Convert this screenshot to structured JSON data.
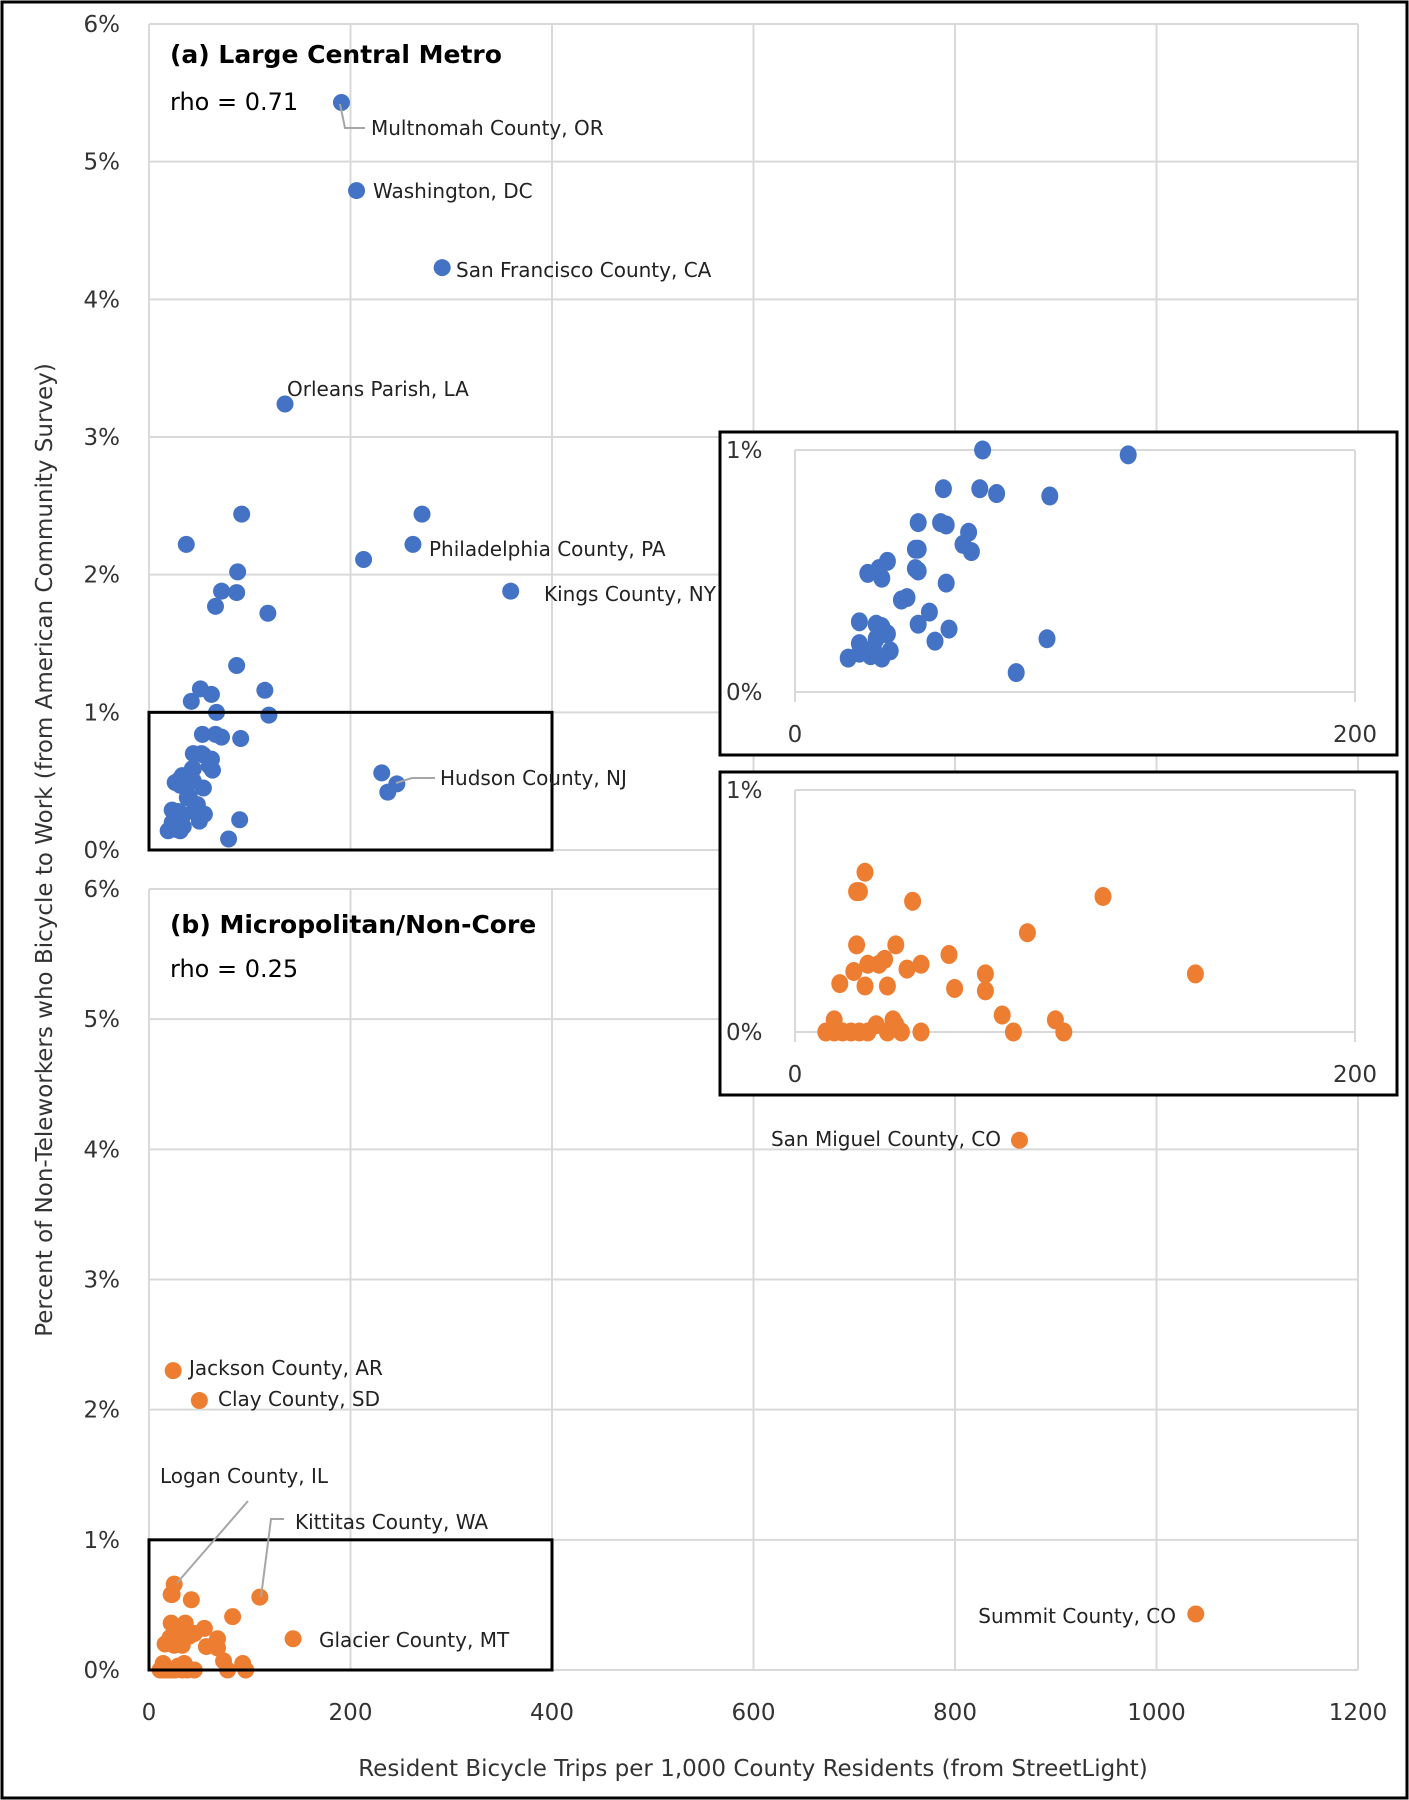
{
  "chart_data": [
    {
      "type": "scatter",
      "panel": "a",
      "title": "(a) Large Central Metro",
      "annotation": "rho = 0.71",
      "xlabel": "Resident Bicycle Trips per 1,000 County Residents (from StreetLight)",
      "ylabel": "Percent of Non-Teleworkers who Bicycle to Work (from American Community Survey)",
      "xlim": [
        0,
        1200
      ],
      "ylim": [
        0,
        6
      ],
      "x_ticks": [
        "0",
        "200",
        "400",
        "600",
        "800",
        "1000",
        "1200"
      ],
      "y_ticks": [
        "0%",
        "1%",
        "2%",
        "3%",
        "4%",
        "5%",
        "6%"
      ],
      "grid": true,
      "color": "#4472C4",
      "highlight_box": {
        "x": [
          0,
          400
        ],
        "y": [
          0,
          1
        ]
      },
      "inset": {
        "xlim": [
          0,
          200
        ],
        "ylim": [
          0,
          1
        ],
        "x_ticks": [
          "0",
          "200"
        ],
        "y_ticks": [
          "0%",
          "1%"
        ]
      },
      "labeled_points": [
        {
          "label": "Multnomah County, OR",
          "x": 191,
          "y": 5.43
        },
        {
          "label": "Washington, DC",
          "x": 206,
          "y": 4.79
        },
        {
          "label": "San Francisco County, CA",
          "x": 291,
          "y": 4.23
        },
        {
          "label": "Orleans Parish, LA",
          "x": 135,
          "y": 3.24
        },
        {
          "label": "Philadelphia County, PA",
          "x": 262,
          "y": 2.22
        },
        {
          "label": "Kings County, NY",
          "x": 359,
          "y": 1.88
        },
        {
          "label": "Hudson County, NJ",
          "x": 246,
          "y": 0.48
        }
      ],
      "points": [
        [
          237,
          0.42
        ],
        [
          231,
          0.56
        ],
        [
          92,
          2.44
        ],
        [
          37,
          2.22
        ],
        [
          271,
          2.44
        ],
        [
          213,
          2.11
        ],
        [
          88,
          2.02
        ],
        [
          72,
          1.88
        ],
        [
          87,
          1.87
        ],
        [
          66,
          1.77
        ],
        [
          118,
          1.72
        ],
        [
          87,
          1.34
        ],
        [
          51,
          1.17
        ],
        [
          62,
          1.13
        ],
        [
          42,
          1.08
        ],
        [
          115,
          1.16
        ],
        [
          67,
          1.0
        ],
        [
          119,
          0.98
        ],
        [
          53,
          0.84
        ],
        [
          66,
          0.84
        ],
        [
          72,
          0.82
        ],
        [
          91,
          0.81
        ],
        [
          44,
          0.7
        ],
        [
          52,
          0.7
        ],
        [
          54,
          0.69
        ],
        [
          62,
          0.66
        ],
        [
          60,
          0.61
        ],
        [
          63,
          0.58
        ],
        [
          43,
          0.59
        ],
        [
          44,
          0.59
        ],
        [
          33,
          0.54
        ],
        [
          26,
          0.49
        ],
        [
          30,
          0.51
        ],
        [
          31,
          0.47
        ],
        [
          43,
          0.51
        ],
        [
          44,
          0.5
        ],
        [
          54,
          0.45
        ],
        [
          38,
          0.38
        ],
        [
          40,
          0.39
        ],
        [
          48,
          0.33
        ],
        [
          23,
          0.29
        ],
        [
          29,
          0.28
        ],
        [
          31,
          0.27
        ],
        [
          44,
          0.28
        ],
        [
          55,
          0.26
        ],
        [
          50,
          0.21
        ],
        [
          90,
          0.22
        ],
        [
          33,
          0.24
        ],
        [
          29,
          0.22
        ],
        [
          23,
          0.2
        ],
        [
          34,
          0.17
        ],
        [
          28,
          0.18
        ],
        [
          23,
          0.16
        ],
        [
          31,
          0.14
        ],
        [
          19,
          0.14
        ],
        [
          79,
          0.08
        ],
        [
          27,
          0.15
        ]
      ]
    },
    {
      "type": "scatter",
      "panel": "b",
      "title": "(b) Micropolitan/Non-Core",
      "annotation": "rho = 0.25",
      "xlim": [
        0,
        1200
      ],
      "ylim": [
        0,
        6
      ],
      "x_ticks": [
        "0",
        "200",
        "400",
        "600",
        "800",
        "1000",
        "1200"
      ],
      "y_ticks": [
        "0%",
        "1%",
        "2%",
        "3%",
        "4%",
        "5%",
        "6%"
      ],
      "grid": true,
      "color": "#ED7D31",
      "highlight_box": {
        "x": [
          0,
          400
        ],
        "y": [
          0,
          1
        ]
      },
      "inset": {
        "xlim": [
          0,
          200
        ],
        "ylim": [
          0,
          1
        ],
        "x_ticks": [
          "0",
          "200"
        ],
        "y_ticks": [
          "0%",
          "1%"
        ]
      },
      "labeled_points": [
        {
          "label": "San Miguel County, CO",
          "x": 864,
          "y": 4.07
        },
        {
          "label": "Jackson County, AR",
          "x": 24,
          "y": 2.3
        },
        {
          "label": "Clay County, SD",
          "x": 50,
          "y": 2.07
        },
        {
          "label": "Logan County, IL",
          "x": 25,
          "y": 0.66
        },
        {
          "label": "Kittitas County, WA",
          "x": 110,
          "y": 0.56
        },
        {
          "label": "Glacier County, MT",
          "x": 143,
          "y": 0.24
        },
        {
          "label": "Summit County, CO",
          "x": 1039,
          "y": 0.43
        }
      ],
      "points": [
        [
          22,
          0.58
        ],
        [
          23,
          0.58
        ],
        [
          42,
          0.54
        ],
        [
          83,
          0.41
        ],
        [
          22,
          0.36
        ],
        [
          36,
          0.36
        ],
        [
          55,
          0.32
        ],
        [
          26,
          0.28
        ],
        [
          30,
          0.28
        ],
        [
          32,
          0.3
        ],
        [
          40,
          0.26
        ],
        [
          45,
          0.28
        ],
        [
          21,
          0.25
        ],
        [
          68,
          0.24
        ],
        [
          16,
          0.2
        ],
        [
          25,
          0.19
        ],
        [
          33,
          0.19
        ],
        [
          57,
          0.18
        ],
        [
          68,
          0.17
        ],
        [
          74,
          0.07
        ],
        [
          93,
          0.05
        ],
        [
          14,
          0.05
        ],
        [
          35,
          0.05
        ],
        [
          36,
          0.03
        ],
        [
          29,
          0.03
        ],
        [
          11,
          0
        ],
        [
          14,
          0
        ],
        [
          17,
          0
        ],
        [
          20,
          0
        ],
        [
          23,
          0
        ],
        [
          26,
          0
        ],
        [
          33,
          0
        ],
        [
          38,
          0
        ],
        [
          45,
          0
        ],
        [
          78,
          0
        ],
        [
          96,
          0
        ]
      ]
    }
  ]
}
